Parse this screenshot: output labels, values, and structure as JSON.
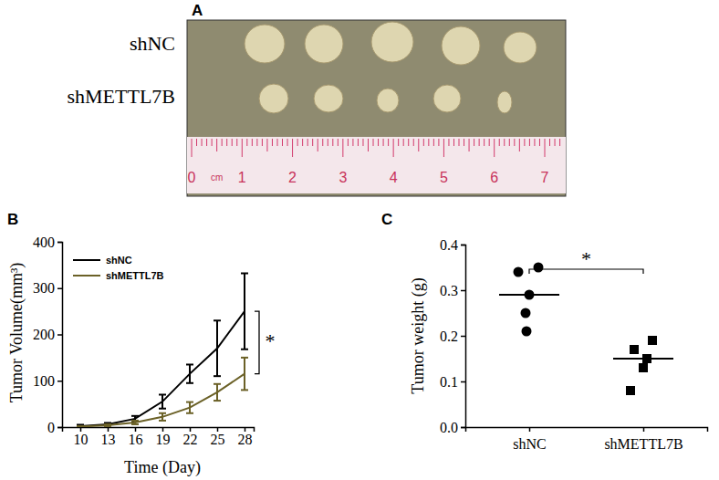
{
  "photo": {
    "panel": "A",
    "rows": [
      "shNC",
      "shMETTL7B"
    ],
    "ruler": {
      "unit": "cm",
      "ticks": [
        0,
        1,
        2,
        3,
        4,
        5,
        6,
        7
      ]
    }
  },
  "chart_data": [
    {
      "panel": "B",
      "type": "line",
      "x_label": "Time (Day)",
      "y_label": "Tumor Volume(mm³)",
      "x": [
        10,
        13,
        16,
        19,
        22,
        25,
        28
      ],
      "series": [
        {
          "name": "shNC",
          "color": "#000000",
          "values": [
            2,
            6,
            18,
            55,
            115,
            170,
            250
          ],
          "errors": [
            3,
            3,
            6,
            15,
            20,
            60,
            82
          ]
        },
        {
          "name": "shMETTL7B",
          "color": "#6b6127",
          "values": [
            1,
            4,
            10,
            22,
            42,
            75,
            115
          ],
          "errors": [
            1,
            2,
            4,
            8,
            12,
            18,
            35
          ]
        }
      ],
      "xlim": [
        8,
        29
      ],
      "xticks": [
        10,
        13,
        16,
        19,
        22,
        25,
        28
      ],
      "ylim": [
        0,
        400
      ],
      "yticks": [
        0,
        100,
        200,
        300,
        400
      ],
      "legend": "upper left",
      "annotation": "*"
    },
    {
      "panel": "C",
      "type": "scatter",
      "y_label": "Tumor weight (g)",
      "series": [
        {
          "name": "shNC",
          "marker": "circle",
          "color": "#000000",
          "values": [
            0.35,
            0.34,
            0.29,
            0.25,
            0.21
          ],
          "mean": 0.29
        },
        {
          "name": "shMETTL7B",
          "marker": "square",
          "color": "#000000",
          "values": [
            0.19,
            0.17,
            0.15,
            0.13,
            0.08
          ],
          "mean": 0.15
        }
      ],
      "ylim": [
        0,
        0.4
      ],
      "yticks": [
        {
          "value": 0,
          "label": "0.0"
        },
        0.1,
        0.2,
        0.3,
        0.4
      ],
      "annotation": "*"
    }
  ]
}
